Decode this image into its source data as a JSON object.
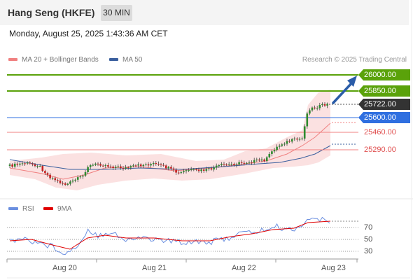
{
  "header": {
    "title": "Hang Seng (HKFE)",
    "timeframe": "30 MIN"
  },
  "datetime": "Monday, August 25, 2025 1:43:36 AM CET",
  "legend": {
    "ma20": "MA 20 + Bollinger Bands",
    "ma50": "MA 50",
    "credit": "Research © 2025 Trading Central"
  },
  "colors": {
    "ma20": "#f08080",
    "ma50": "#3a5f9e",
    "resistance": "#5aa20a",
    "support": "#2f6fe0",
    "stop": "#e05050",
    "last": "#333333",
    "candle_up": "#2e8b2e",
    "candle_down": "#c62020",
    "rsi": "#6b8fe0",
    "rsi_ma": "#e00000",
    "band": "#f8c8c8",
    "arrow": "#2a5ca8"
  },
  "levels": {
    "r2": "26000.00",
    "r1": "25850.00",
    "last": "25722.00",
    "pivot": "25600.00",
    "s1": "25460.00",
    "s2": "25290.00"
  },
  "rsi": {
    "label": "RSI",
    "ma_label": "9MA",
    "levels": [
      "70",
      "50",
      "30"
    ]
  },
  "xaxis": [
    "Aug 20",
    "Aug 21",
    "Aug 22",
    "Aug 23"
  ]
}
